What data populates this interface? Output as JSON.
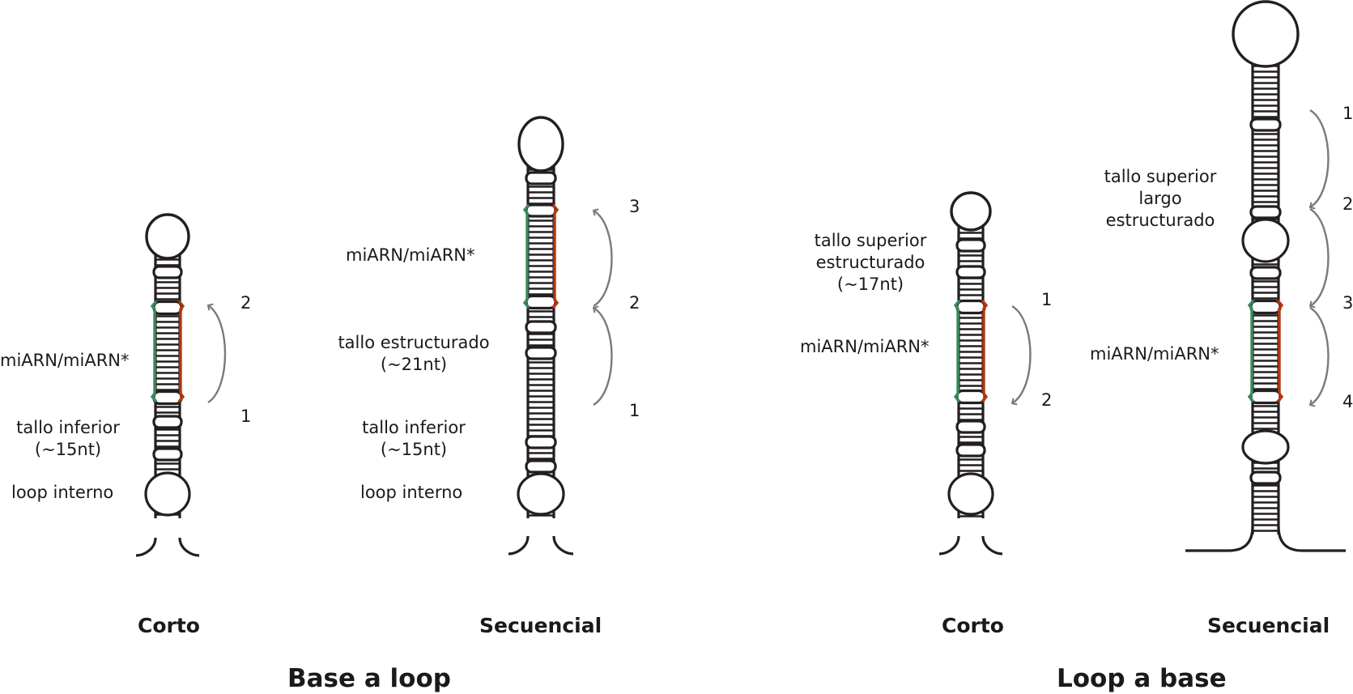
{
  "colors": {
    "outline": "#231f20",
    "mirna_strand": "#3a8a5c",
    "mirna_star_strand": "#b5360f",
    "arrow": "#7a7a7a"
  },
  "groups": {
    "base_to_loop": {
      "title": "Base a loop",
      "short": {
        "caption": "Corto",
        "labels": {
          "mirna": "miARN/miARN*",
          "lower_stem": "tallo inferior",
          "lower_stem_len": "(~15nt)",
          "internal_loop": "loop interno"
        },
        "steps": [
          "1",
          "2"
        ]
      },
      "sequential": {
        "caption": "Secuencial",
        "labels": {
          "mirna": "miARN/miARN*",
          "stem": "tallo estructurado",
          "stem_len": "(~21nt)",
          "lower_stem": "tallo inferior",
          "lower_stem_len": "(~15nt)",
          "internal_loop": "loop interno"
        },
        "steps": [
          "1",
          "2",
          "3"
        ]
      }
    },
    "loop_to_base": {
      "title": "Loop a base",
      "short": {
        "caption": "Corto",
        "labels": {
          "upper_stem_1": "tallo superior",
          "upper_stem_2": "estructurado",
          "upper_stem_len": "(~17nt)",
          "mirna": "miARN/miARN*"
        },
        "steps": [
          "1",
          "2"
        ]
      },
      "sequential": {
        "caption": "Secuencial",
        "labels": {
          "upper_stem_1": "tallo superior",
          "upper_stem_2": "largo",
          "upper_stem_3": "estructurado",
          "mirna": "miARN/miARN*"
        },
        "steps": [
          "1",
          "2",
          "3",
          "4"
        ]
      }
    }
  }
}
